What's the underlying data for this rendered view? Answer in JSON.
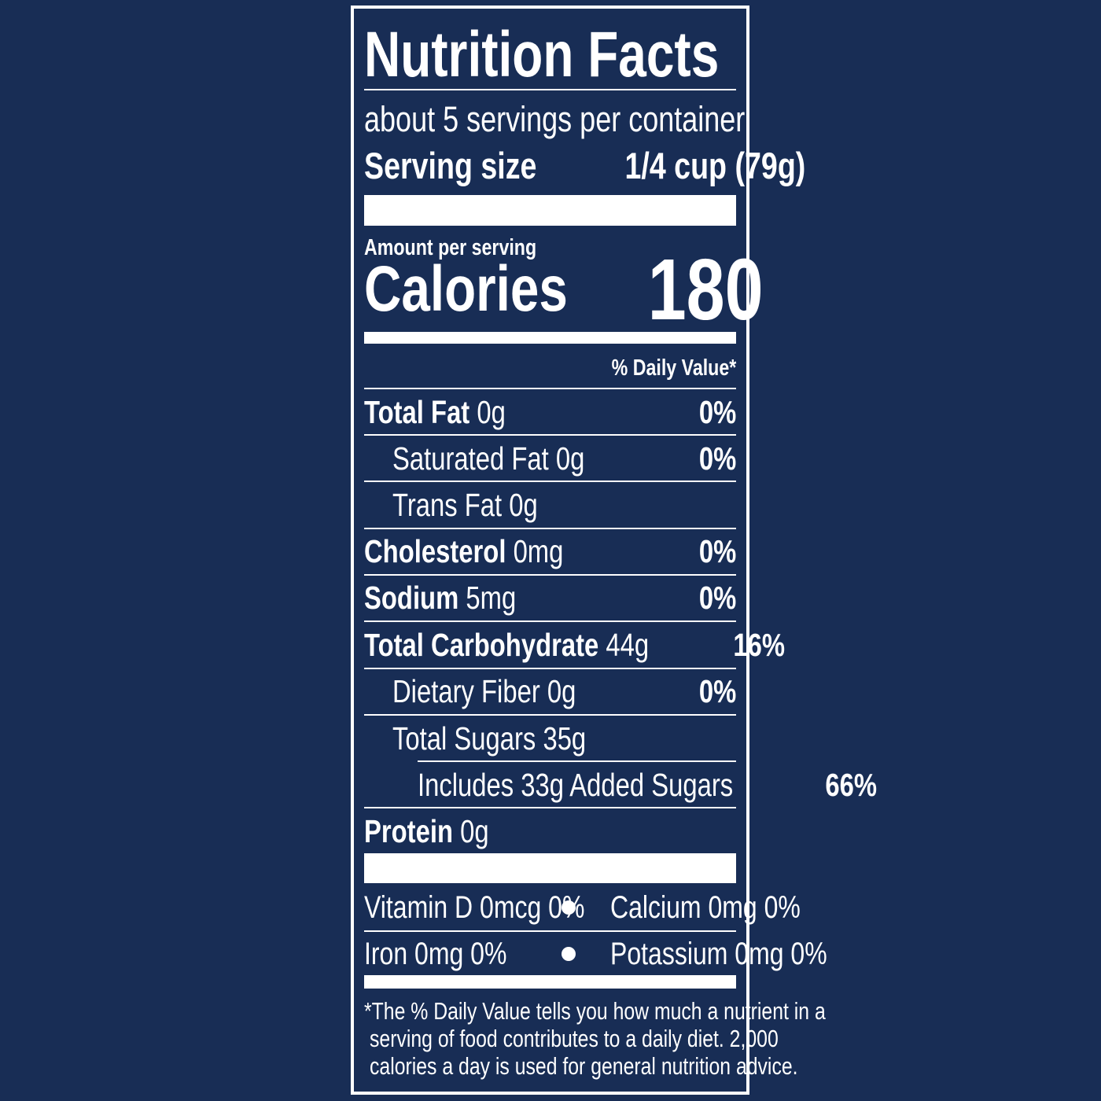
{
  "colors": {
    "background": "#182d55",
    "foreground": "#ffffff"
  },
  "title": "Nutrition Facts",
  "servings_per_container": "about 5 servings per container",
  "serving_size": {
    "label": "Serving size",
    "value": "1/4 cup (79g)"
  },
  "amount_per_serving": "Amount per serving",
  "calories": {
    "label": "Calories",
    "value": "180"
  },
  "daily_value_header": "% Daily Value*",
  "nutrients": [
    {
      "name": "Total Fat",
      "amount": "0g",
      "dv": "0%"
    },
    {
      "name": "Saturated Fat",
      "amount": "0g",
      "dv": "0%"
    },
    {
      "name": "Trans Fat",
      "amount": "0g",
      "dv": ""
    },
    {
      "name": "Cholesterol",
      "amount": "0mg",
      "dv": "0%"
    },
    {
      "name": "Sodium",
      "amount": "5mg",
      "dv": "0%"
    },
    {
      "name": "Total Carbohydrate",
      "amount": "44g",
      "dv": "16%"
    },
    {
      "name": "Dietary Fiber",
      "amount": "0g",
      "dv": "0%"
    },
    {
      "name": "Total Sugars",
      "amount": "35g",
      "dv": ""
    },
    {
      "name": "Includes 33g Added Sugars",
      "amount": "",
      "dv": "66%"
    },
    {
      "name": "Protein",
      "amount": "0g",
      "dv": ""
    }
  ],
  "micronutrients": [
    "Vitamin D 0mcg 0%",
    "Calcium 0mg 0%",
    "Iron 0mg 0%",
    "Potassium 0mg 0%"
  ],
  "footnote": [
    "*The % Daily Value tells you how much a nutrient in a",
    "serving of food contributes to a daily diet. 2,000",
    "calories a day is used for general nutrition advice."
  ]
}
